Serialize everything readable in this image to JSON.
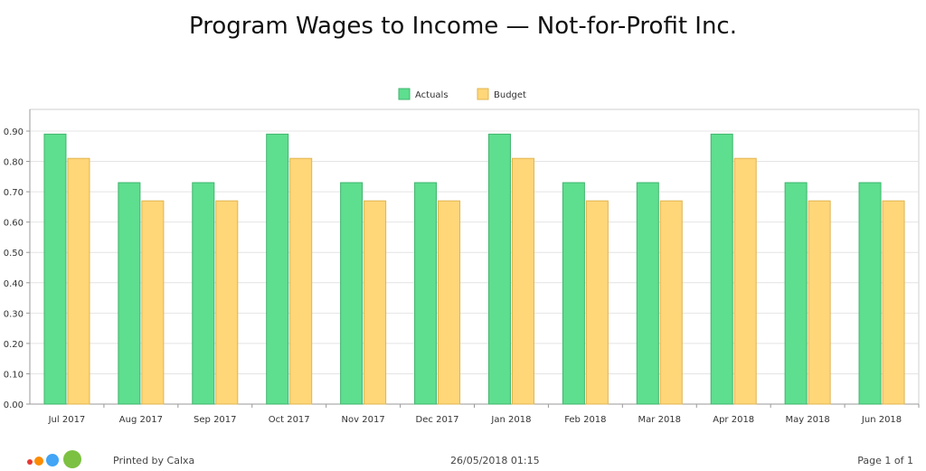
{
  "chart_data": {
    "type": "bar",
    "title": "Program Wages to Income — Not-for-Profit Inc.",
    "xlabel": "",
    "ylabel": "",
    "categories": [
      "Jul 2017",
      "Aug 2017",
      "Sep 2017",
      "Oct 2017",
      "Nov 2017",
      "Dec 2017",
      "Jan 2018",
      "Feb 2018",
      "Mar 2018",
      "Apr 2018",
      "May 2018",
      "Jun 2018"
    ],
    "series": [
      {
        "name": "Actuals",
        "color": "#5ede8f",
        "stroke": "#3fb56c",
        "values": [
          0.89,
          0.73,
          0.73,
          0.89,
          0.73,
          0.73,
          0.89,
          0.73,
          0.73,
          0.89,
          0.73,
          0.73
        ]
      },
      {
        "name": "Budget",
        "color": "#ffd678",
        "stroke": "#e0b450",
        "values": [
          0.81,
          0.67,
          0.67,
          0.81,
          0.67,
          0.67,
          0.81,
          0.67,
          0.67,
          0.81,
          0.67,
          0.67
        ]
      }
    ],
    "ylim": [
      0,
      0.9
    ],
    "yticks": [
      "0.00",
      "0.10",
      "0.20",
      "0.30",
      "0.40",
      "0.50",
      "0.60",
      "0.70",
      "0.80",
      "0.90"
    ],
    "grid": true,
    "legend_position": "top-center"
  },
  "footer": {
    "printed_by": "Printed by Calxa",
    "datetime": "26/05/2018 01:15",
    "page": "Page 1 of 1"
  },
  "logo_colors": [
    "#e53935",
    "#fb8c00",
    "#42a5f5",
    "#7cc142"
  ]
}
